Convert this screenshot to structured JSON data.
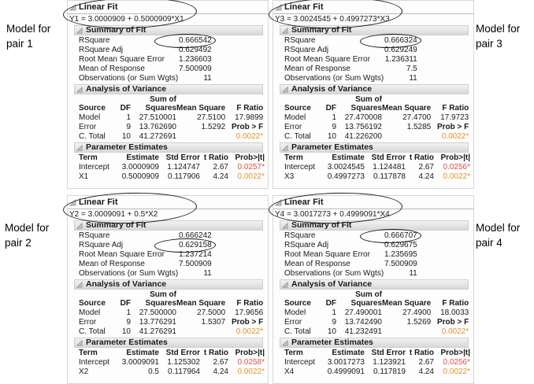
{
  "colors": {
    "significant_red": "#e05050",
    "significant_orange": "#e8912b",
    "header_band_top": "#f2f2f2",
    "header_band_bottom": "#d8d8d8"
  },
  "sections": {
    "summary": "Summary of Fit",
    "anova": "Analysis of Variance",
    "params": "Parameter Estimates"
  },
  "anova_cols": {
    "sum_of": "Sum of",
    "source": "Source",
    "df": "DF",
    "squares": "Squares",
    "mean_square": "Mean Square",
    "f_ratio": "F Ratio"
  },
  "param_cols": {
    "term": "Term",
    "estimate": "Estimate",
    "std_error": "Std Error",
    "t_ratio": "t Ratio",
    "prob_t": "Prob>|t|"
  },
  "side_labels": [
    {
      "text": "Model for pair 1"
    },
    {
      "text": "Model for pair 3"
    },
    {
      "text": "Model for pair 2"
    },
    {
      "text": "Model for pair 4"
    }
  ],
  "panels": [
    {
      "title": "Linear Fit",
      "equation": "Y1 = 3.0000909 + 0.5000909*X1",
      "summary": [
        {
          "label": "RSquare",
          "value": "0.666542"
        },
        {
          "label": "RSquare Adj",
          "value": "0.629492"
        },
        {
          "label": "Root Mean Square Error",
          "value": "1.236603"
        },
        {
          "label": "Mean of Response",
          "value": "7.500909"
        },
        {
          "label": "Observations (or Sum Wgts)",
          "value": "11"
        }
      ],
      "circled_statistic_row": 0,
      "anova": [
        [
          "Model",
          "1",
          "27.510001",
          "27.5100",
          "17.9899"
        ],
        [
          "Error",
          "9",
          "13.762690",
          "1.5292",
          "Prob > F"
        ],
        [
          "C. Total",
          "10",
          "41.272691",
          "",
          "0.0022*"
        ]
      ],
      "params": [
        [
          "Intercept",
          "3.0000909",
          "1.124747",
          "2.67",
          "0.0257*"
        ],
        [
          "X1",
          "0.5000909",
          "0.117906",
          "4.24",
          "0.0022*"
        ]
      ]
    },
    {
      "title": "Linear Fit",
      "equation": "Y3 = 3.0024545 + 0.4997273*X3",
      "summary": [
        {
          "label": "RSquare",
          "value": "0.666324"
        },
        {
          "label": "RSquare Adj",
          "value": "0.629249"
        },
        {
          "label": "Root Mean Square Error",
          "value": "1.236311"
        },
        {
          "label": "Mean of Response",
          "value": "7.5"
        },
        {
          "label": "Observations (or Sum Wgts)",
          "value": "11"
        }
      ],
      "circled_statistic_row": 0,
      "anova": [
        [
          "Model",
          "1",
          "27.470008",
          "27.4700",
          "17.9723"
        ],
        [
          "Error",
          "9",
          "13.756192",
          "1.5285",
          "Prob > F"
        ],
        [
          "C. Total",
          "10",
          "41.226200",
          "",
          "0.0022*"
        ]
      ],
      "params": [
        [
          "Intercept",
          "3.0024545",
          "1.124481",
          "2.67",
          "0.0256*"
        ],
        [
          "X3",
          "0.4997273",
          "0.117878",
          "4.24",
          "0.0022*"
        ]
      ]
    },
    {
      "title": "Linear Fit",
      "equation": "Y2 = 3.0009091 + 0.5*X2",
      "summary": [
        {
          "label": "RSquare",
          "value": "0.666242"
        },
        {
          "label": "RSquare Adj",
          "value": "0.629158"
        },
        {
          "label": "Root Mean Square Error",
          "value": "1.237214"
        },
        {
          "label": "Mean of Response",
          "value": "7.500909"
        },
        {
          "label": "Observations (or Sum Wgts)",
          "value": "11"
        }
      ],
      "circled_statistic_row": 1,
      "anova": [
        [
          "Model",
          "1",
          "27.500000",
          "27.5000",
          "17.9656"
        ],
        [
          "Error",
          "9",
          "13.776291",
          "1.5307",
          "Prob > F"
        ],
        [
          "C. Total",
          "10",
          "41.276291",
          "",
          "0.0022*"
        ]
      ],
      "params": [
        [
          "Intercept",
          "3.0009091",
          "1.125302",
          "2.67",
          "0.0258*"
        ],
        [
          "X2",
          "0.5",
          "0.117964",
          "4.24",
          "0.0022*"
        ]
      ]
    },
    {
      "title": "Linear Fit",
      "equation": "Y4 = 3.0017273 + 0.4999091*X4",
      "summary": [
        {
          "label": "RSquare",
          "value": "0.666707"
        },
        {
          "label": "RSquare Adj",
          "value": "0.629675"
        },
        {
          "label": "Root Mean Square Error",
          "value": "1.235695"
        },
        {
          "label": "Mean of Response",
          "value": "7.500909"
        },
        {
          "label": "Observations (or Sum Wgts)",
          "value": "11"
        }
      ],
      "circled_statistic_row": 0,
      "anova": [
        [
          "Model",
          "1",
          "27.490001",
          "27.4900",
          "18.0033"
        ],
        [
          "Error",
          "9",
          "13.742490",
          "1.5269",
          "Prob > F"
        ],
        [
          "C. Total",
          "10",
          "41.232491",
          "",
          "0.0022*"
        ]
      ],
      "params": [
        [
          "Intercept",
          "3.0017273",
          "1.123921",
          "2.67",
          "0.0256*"
        ],
        [
          "X4",
          "0.4999091",
          "0.117819",
          "4.24",
          "0.0022*"
        ]
      ]
    }
  ]
}
